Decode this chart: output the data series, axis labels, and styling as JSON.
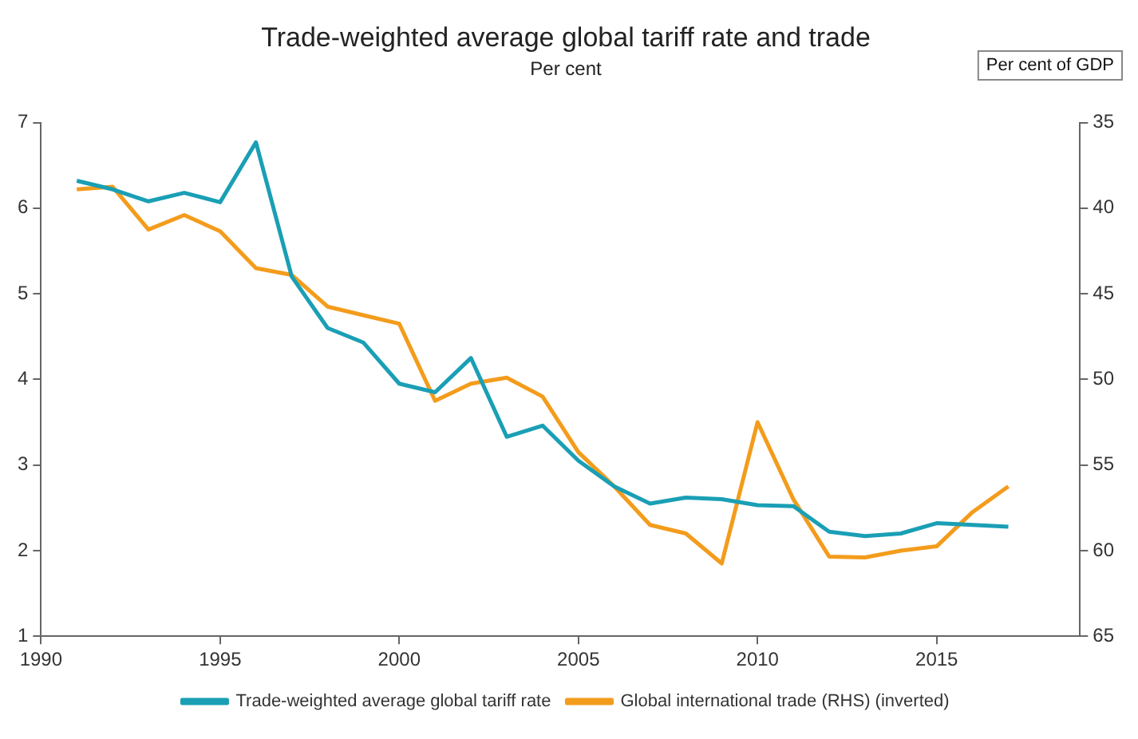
{
  "chart_data": {
    "type": "line",
    "title": "Trade-weighted average global tariff rate and trade",
    "subtitle": "Per cent",
    "y2label": "Per cent of GDP",
    "x": [
      1991,
      1992,
      1993,
      1994,
      1995,
      1996,
      1997,
      1998,
      1999,
      2000,
      2001,
      2002,
      2003,
      2004,
      2005,
      2006,
      2007,
      2008,
      2009,
      2010,
      2011,
      2012,
      2013,
      2014,
      2015,
      2016,
      2017
    ],
    "series": [
      {
        "name": "Trade-weighted average global tariff rate",
        "color": "#1a9fb5",
        "values": [
          6.32,
          6.22,
          6.08,
          6.18,
          6.07,
          6.77,
          5.2,
          4.6,
          4.43,
          3.95,
          3.85,
          4.25,
          3.33,
          3.46,
          3.05,
          2.75,
          2.55,
          2.62,
          2.6,
          2.53,
          2.52,
          2.22,
          2.17,
          2.2,
          2.32,
          2.3,
          2.28
        ]
      },
      {
        "name": "Global international trade (RHS) (inverted)",
        "color": "#f39c1c",
        "axis": "y2",
        "values": [
          38.9,
          38.75,
          41.25,
          40.4,
          41.35,
          43.5,
          43.9,
          45.75,
          46.25,
          46.75,
          51.25,
          50.25,
          49.9,
          51,
          54.25,
          56.25,
          58.5,
          59,
          60.75,
          52.5,
          57,
          60.35,
          60.4,
          60,
          59.75,
          57.75,
          56.25
        ]
      }
    ],
    "xlim": [
      1990,
      2019
    ],
    "xticks": [
      1990,
      1995,
      2000,
      2005,
      2010,
      2015
    ],
    "ylim": [
      1,
      7
    ],
    "yticks": [
      1,
      2,
      3,
      4,
      5,
      6,
      7
    ],
    "y2lim": [
      65,
      35
    ],
    "y2ticks": [
      35,
      40,
      45,
      50,
      55,
      60,
      65
    ],
    "grid": false,
    "legend": "bottom",
    "marker": "none",
    "line_style": "solid"
  }
}
